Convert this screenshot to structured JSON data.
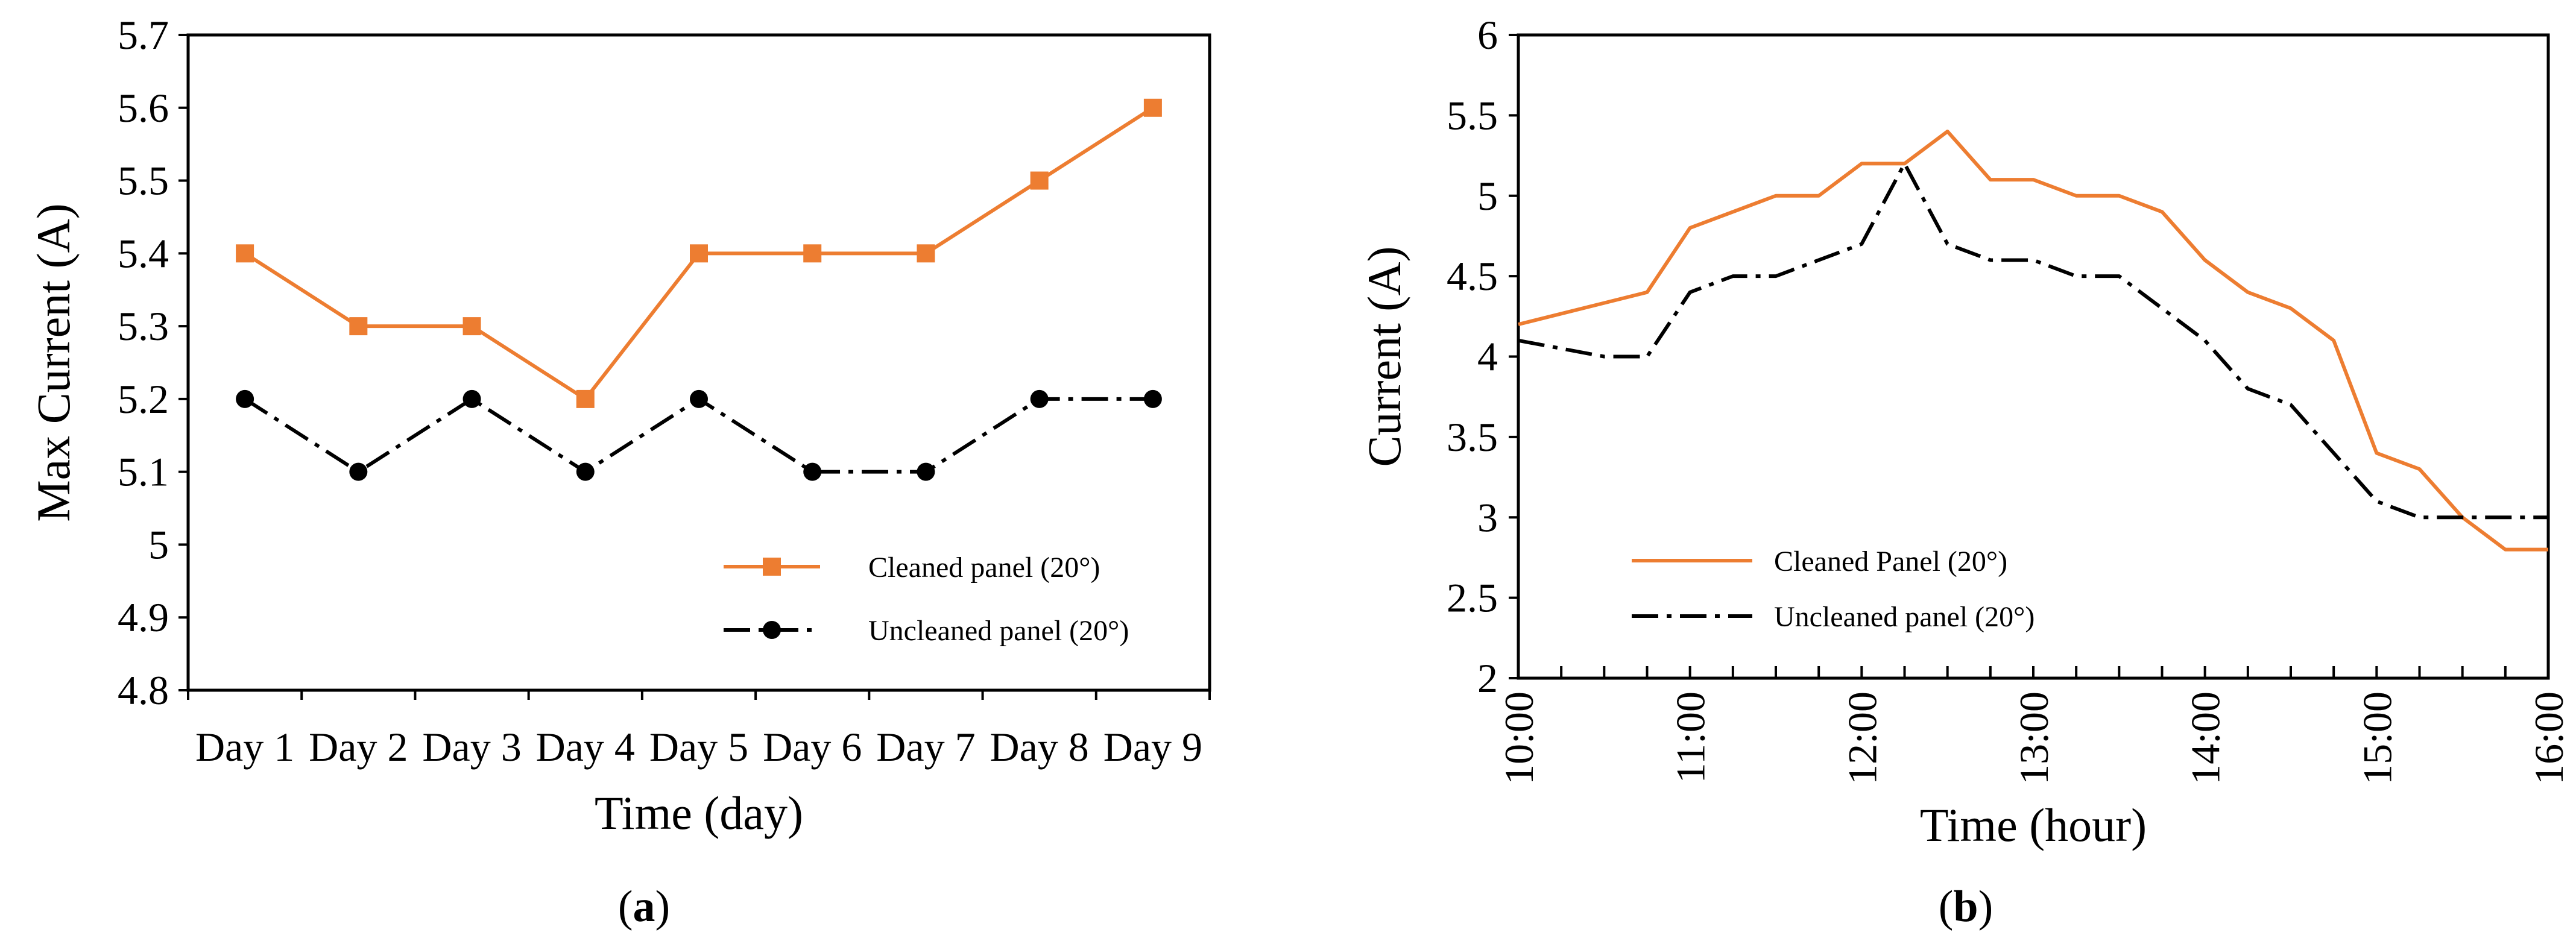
{
  "colors": {
    "cleaned": "#ED7D31",
    "uncleaned": "#000000",
    "axis": "#000000"
  },
  "chart_data": [
    {
      "type": "line",
      "caption_open": "(",
      "caption_letter": "a",
      "caption_close": ")",
      "xlabel": "Time (day)",
      "ylabel": "Max Current (A)",
      "ylim": [
        4.8,
        5.7
      ],
      "yticks": [
        "4.8",
        "4.9",
        "5",
        "5.1",
        "5.2",
        "5.3",
        "5.4",
        "5.5",
        "5.6",
        "5.7"
      ],
      "categories": [
        "Day 1",
        "Day 2",
        "Day 3",
        "Day 4",
        "Day 5",
        "Day 6",
        "Day 7",
        "Day 8",
        "Day 9"
      ],
      "series": [
        {
          "name": "Cleaned panel (20°)",
          "marker": "square",
          "style": "solid",
          "values": [
            5.4,
            5.3,
            5.3,
            5.2,
            5.4,
            5.4,
            5.4,
            5.5,
            5.6
          ]
        },
        {
          "name": "Uncleaned panel (20°)",
          "marker": "circle",
          "style": "dashdot",
          "values": [
            5.2,
            5.1,
            5.2,
            5.1,
            5.2,
            5.1,
            5.1,
            5.2,
            5.2
          ]
        }
      ],
      "legend_position": "lower-right"
    },
    {
      "type": "line",
      "caption_open": "(",
      "caption_letter": "b",
      "caption_close": ")",
      "xlabel": "Time (hour)",
      "ylabel": "Current (A)",
      "ylim": [
        2,
        6
      ],
      "yticks": [
        "2",
        "2.5",
        "3",
        "3.5",
        "4",
        "4.5",
        "5",
        "5.5",
        "6"
      ],
      "xlim": [
        10,
        16
      ],
      "xticks": [
        "10:00",
        "11:00",
        "12:00",
        "13:00",
        "14:00",
        "15:00",
        "16:00"
      ],
      "series": [
        {
          "name": "Cleaned Panel (20°)",
          "style": "solid",
          "x": [
            10,
            10.75,
            11,
            11.5,
            11.75,
            12,
            12.25,
            12.5,
            12.75,
            13,
            13.25,
            13.5,
            13.75,
            14,
            14.25,
            14.5,
            14.75,
            15,
            15.25,
            15.5,
            15.75,
            16
          ],
          "y": [
            4.2,
            4.4,
            4.8,
            5.0,
            5.0,
            5.2,
            5.2,
            5.4,
            5.1,
            5.1,
            5.0,
            5.0,
            4.9,
            4.6,
            4.4,
            4.3,
            4.1,
            3.4,
            3.3,
            3.0,
            2.8,
            2.8
          ]
        },
        {
          "name": "Uncleaned panel (20°)",
          "style": "dashdot",
          "x": [
            10,
            10.5,
            10.75,
            11,
            11.25,
            11.5,
            11.75,
            12,
            12.25,
            12.5,
            12.75,
            13,
            13.25,
            13.5,
            13.75,
            14,
            14.25,
            14.5,
            14.75,
            15,
            15.25,
            15.5,
            16
          ],
          "y": [
            4.1,
            4.0,
            4.0,
            4.4,
            4.5,
            4.5,
            4.6,
            4.7,
            5.2,
            4.7,
            4.6,
            4.6,
            4.5,
            4.5,
            4.3,
            4.1,
            3.8,
            3.7,
            3.4,
            3.1,
            3.0,
            3.0,
            3.0
          ]
        }
      ],
      "legend_position": "lower-left"
    }
  ]
}
